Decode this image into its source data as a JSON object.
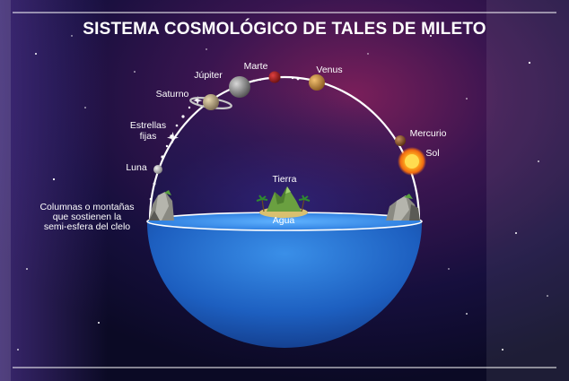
{
  "title": "SISTEMA COSMOLÓGICO DE TALES DE MILETO",
  "labels": {
    "marte": "Marte",
    "jupiter": "Júpiter",
    "venus": "Venus",
    "saturno": "Saturno",
    "estrellas_1": "Estrellas",
    "estrellas_2": "fijas",
    "mercurio": "Mercurio",
    "sol": "Sol",
    "luna": "Luna",
    "tierra": "Tierra",
    "agua": "Agua",
    "columnas_1": "Columnas o montañas",
    "columnas_2": "que sostienen la",
    "columnas_3": "semi-esfera del cielo"
  },
  "colors": {
    "sky_dark": "#120c3a",
    "nebula": "#7a1f5a",
    "water": "#1f6fd0",
    "sun": "#f39b1c"
  }
}
